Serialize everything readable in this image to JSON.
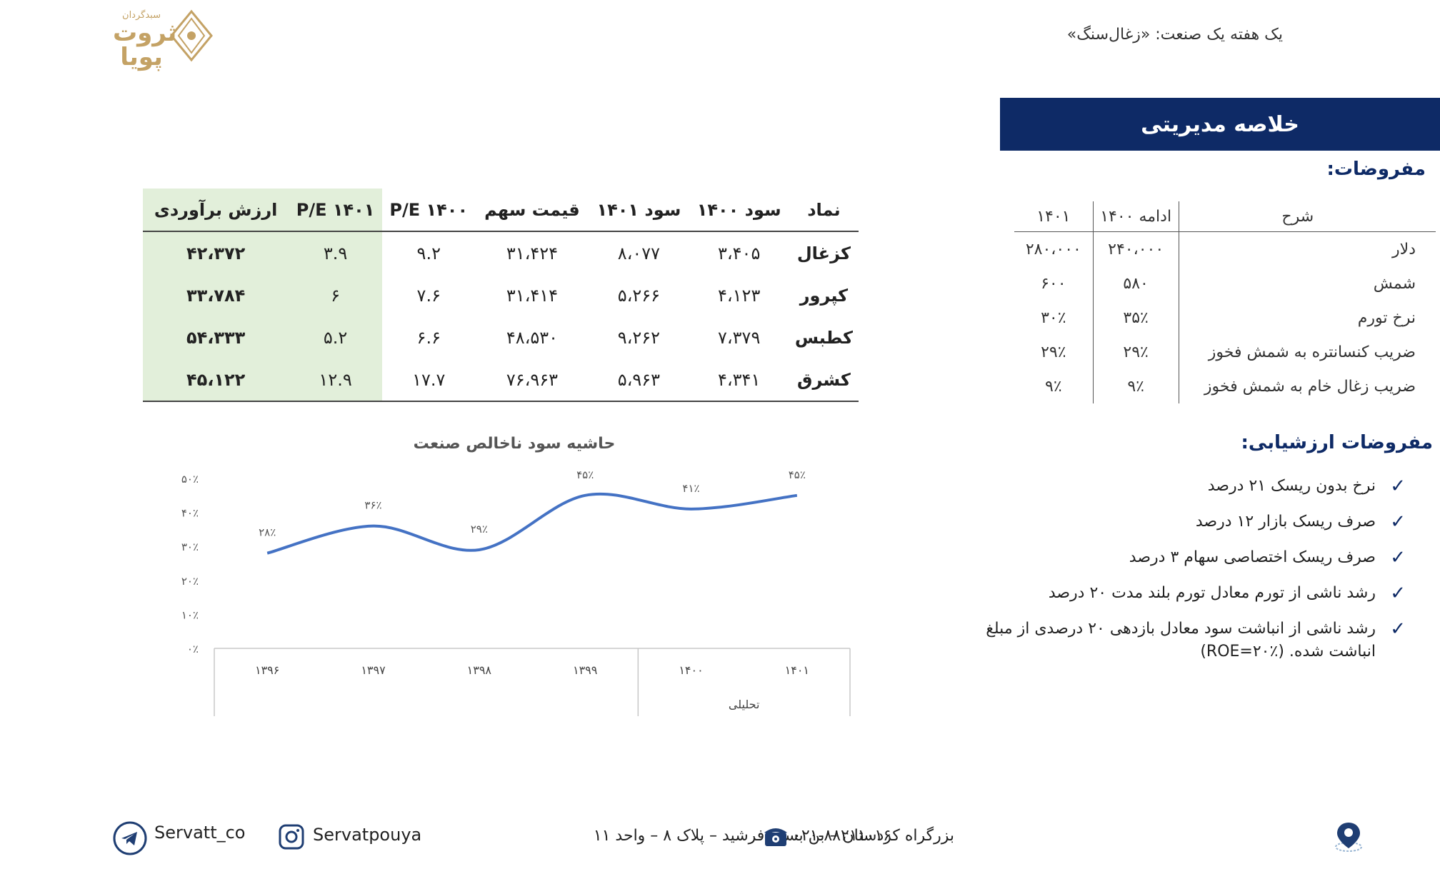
{
  "header": {
    "logo_small": "سبدگردان",
    "logo_big": "ثروت پویا",
    "title": "یک هفته یک صنعت: «زغال‌سنگ»"
  },
  "summary_banner": "خلاصه مدیریتی",
  "assumptions": {
    "title": "مفروضات:",
    "headers": [
      "شرح",
      "ادامه ۱۴۰۰",
      "۱۴۰۱"
    ],
    "rows": [
      {
        "desc": "دلار",
        "a": "۲۴۰،۰۰۰",
        "b": "۲۸۰،۰۰۰"
      },
      {
        "desc": "شمش",
        "a": "۵۸۰",
        "b": "۶۰۰"
      },
      {
        "desc": "نرخ تورم",
        "a": "۳۵٪",
        "b": "۳۰٪"
      },
      {
        "desc": "ضریب  کنسانتره به شمش فخوز",
        "a": "۲۹٪",
        "b": "۲۹٪"
      },
      {
        "desc": "ضریب  زغال خام به شمش فخوز",
        "a": "۹٪",
        "b": "۹٪"
      }
    ]
  },
  "valuation": {
    "title": "مفروضات ارزشیابی:",
    "items": [
      "نرخ بدون ریسک ۲۱ درصد",
      "صرف ریسک بازار ۱۲ درصد",
      "صرف ریسک اختصاصی سهام ۳ درصد",
      "رشد ناشی از تورم معادل تورم بلند مدت  ۲۰ درصد",
      "رشد ناشی از انباشت سود معادل بازدهی ۲۰ درصدی از مبلغ انباشت شده. (ROE=۲۰٪)"
    ]
  },
  "stock_table": {
    "headers": [
      "نماد",
      "سود ۱۴۰۰",
      "سود ۱۴۰۱",
      "قیمت سهم",
      "P/E ۱۴۰۰",
      "P/E ۱۴۰۱",
      "ارزش برآوردی"
    ],
    "rows": [
      [
        "کزغال",
        "۳،۴۰۵",
        "۸،۰۷۷",
        "۳۱،۴۲۴",
        "۹.۲",
        "۳.۹",
        "۴۲،۳۷۲"
      ],
      [
        "کپرور",
        "۴،۱۲۳",
        "۵،۲۶۶",
        "۳۱،۴۱۴",
        "۷.۶",
        "۶",
        "۳۳،۷۸۴"
      ],
      [
        "کطبس",
        "۷،۳۷۹",
        "۹،۲۶۲",
        "۴۸،۵۳۰",
        "۶.۶",
        "۵.۲",
        "۵۴،۳۳۳"
      ],
      [
        "کشرق",
        "۴،۳۴۱",
        "۵،۹۶۳",
        "۷۶،۹۶۳",
        "۱۷.۷",
        "۱۲.۹",
        "۴۵،۱۲۲"
      ]
    ]
  },
  "chart_data": {
    "type": "line",
    "title": "حاشیه سود ناخالص صنعت",
    "categories": [
      "۱۳۹۶",
      "۱۳۹۷",
      "۱۳۹۸",
      "۱۳۹۹",
      "۱۴۰۰",
      "۱۴۰۱"
    ],
    "values": [
      28,
      36,
      29,
      45,
      41,
      45
    ],
    "data_labels": [
      "۲۸٪",
      "۳۶٪",
      "۲۹٪",
      "۴۵٪",
      "۴۱٪",
      "۴۵٪"
    ],
    "yticks": [
      "۰٪",
      "۱۰٪",
      "۲۰٪",
      "۳۰٪",
      "۴۰٪",
      "۵۰٪"
    ],
    "ylim": [
      0,
      50
    ],
    "group_label": "تحلیلی",
    "line_color": "#4472c4",
    "grid": false
  },
  "footer": {
    "address": "بزرگراه کردستان – بن بست فرشید – پلاک ۸ – واحد ۱۱",
    "phone": "۰۲۱-۸۸۲۱۱۰۱۶",
    "instagram": "Servatpouya",
    "telegram": "Servatt_co"
  },
  "colors": {
    "brand_navy": "#0e2a66",
    "gold": "#c4a265",
    "highlight_green": "#e2efda"
  }
}
